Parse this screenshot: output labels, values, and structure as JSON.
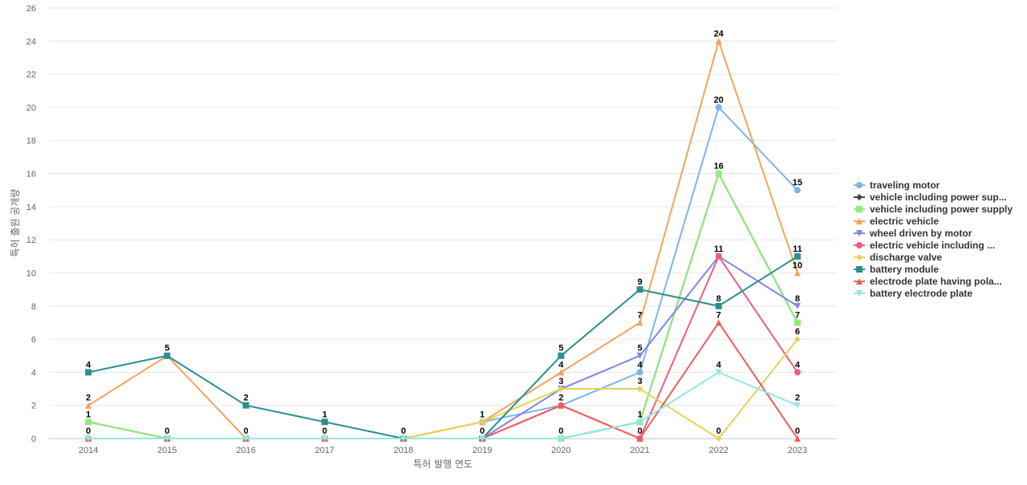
{
  "chart_data": {
    "type": "line",
    "title": "",
    "xlabel": "특허 발행 연도",
    "ylabel": "특허 출원 공개량",
    "categories": [
      "2014",
      "2015",
      "2016",
      "2017",
      "2018",
      "2019",
      "2020",
      "2021",
      "2022",
      "2023"
    ],
    "ylim": [
      0,
      26
    ],
    "yticks": [
      0,
      2,
      4,
      6,
      8,
      10,
      12,
      14,
      16,
      18,
      20,
      22,
      24,
      26
    ],
    "grid": true,
    "legend_position": "right",
    "series": [
      {
        "name": "traveling motor",
        "color": "#7cb5ec",
        "marker": "circle",
        "values": [
          0,
          0,
          0,
          0,
          0,
          1,
          2,
          4,
          20,
          15
        ]
      },
      {
        "name": "vehicle including power sup...",
        "color": "#434348",
        "marker": "diamond",
        "values": [
          1,
          0,
          0,
          0,
          0,
          0,
          0,
          1,
          16,
          7
        ]
      },
      {
        "name": "vehicle including power supply",
        "color": "#90ed7d",
        "marker": "square",
        "values": [
          1,
          0,
          0,
          0,
          0,
          0,
          0,
          1,
          16,
          7
        ]
      },
      {
        "name": "electric vehicle",
        "color": "#f7a35c",
        "marker": "triangle",
        "values": [
          2,
          5,
          0,
          0,
          0,
          1,
          4,
          7,
          24,
          10
        ]
      },
      {
        "name": "wheel driven by motor",
        "color": "#8085e9",
        "marker": "triangle-down",
        "values": [
          0,
          0,
          0,
          0,
          0,
          0,
          3,
          5,
          11,
          8
        ]
      },
      {
        "name": "electric vehicle including ...",
        "color": "#f15c80",
        "marker": "circle",
        "values": [
          0,
          0,
          0,
          0,
          0,
          0,
          2,
          0,
          11,
          4
        ]
      },
      {
        "name": "discharge valve",
        "color": "#e4d354",
        "marker": "diamond",
        "values": [
          0,
          0,
          0,
          0,
          0,
          1,
          3,
          3,
          0,
          6
        ]
      },
      {
        "name": "battery module",
        "color": "#2b908f",
        "marker": "square",
        "values": [
          4,
          5,
          2,
          1,
          0,
          0,
          5,
          9,
          8,
          11
        ]
      },
      {
        "name": "electrode plate having pola...",
        "color": "#f45b5b",
        "marker": "triangle",
        "values": [
          0,
          0,
          0,
          0,
          0,
          0,
          2,
          0,
          7,
          0
        ]
      },
      {
        "name": "battery electrode plate",
        "color": "#91e8e1",
        "marker": "triangle-down",
        "values": [
          0,
          0,
          0,
          0,
          0,
          0,
          0,
          1,
          4,
          2
        ]
      }
    ],
    "data_labels": [
      {
        "category": "2014",
        "values": [
          "4",
          "2",
          "1",
          "0"
        ]
      },
      {
        "category": "2015",
        "values": [
          "5",
          "0"
        ]
      },
      {
        "category": "2016",
        "values": [
          "2",
          "0"
        ]
      },
      {
        "category": "2017",
        "values": [
          "1",
          "0"
        ]
      },
      {
        "category": "2018",
        "values": [
          "0"
        ]
      },
      {
        "category": "2019",
        "values": [
          "1",
          "0"
        ]
      },
      {
        "category": "2020",
        "values": [
          "5",
          "4",
          "3",
          "2",
          "0"
        ]
      },
      {
        "category": "2021",
        "values": [
          "9",
          "7",
          "5",
          "4",
          "3",
          "1",
          "0"
        ]
      },
      {
        "category": "2022",
        "values": [
          "24",
          "20",
          "16",
          "11",
          "8",
          "7",
          "4",
          "0"
        ]
      },
      {
        "category": "2023",
        "values": [
          "15",
          "11",
          "10",
          "8",
          "7",
          "6",
          "4",
          "2",
          "0"
        ]
      }
    ]
  }
}
